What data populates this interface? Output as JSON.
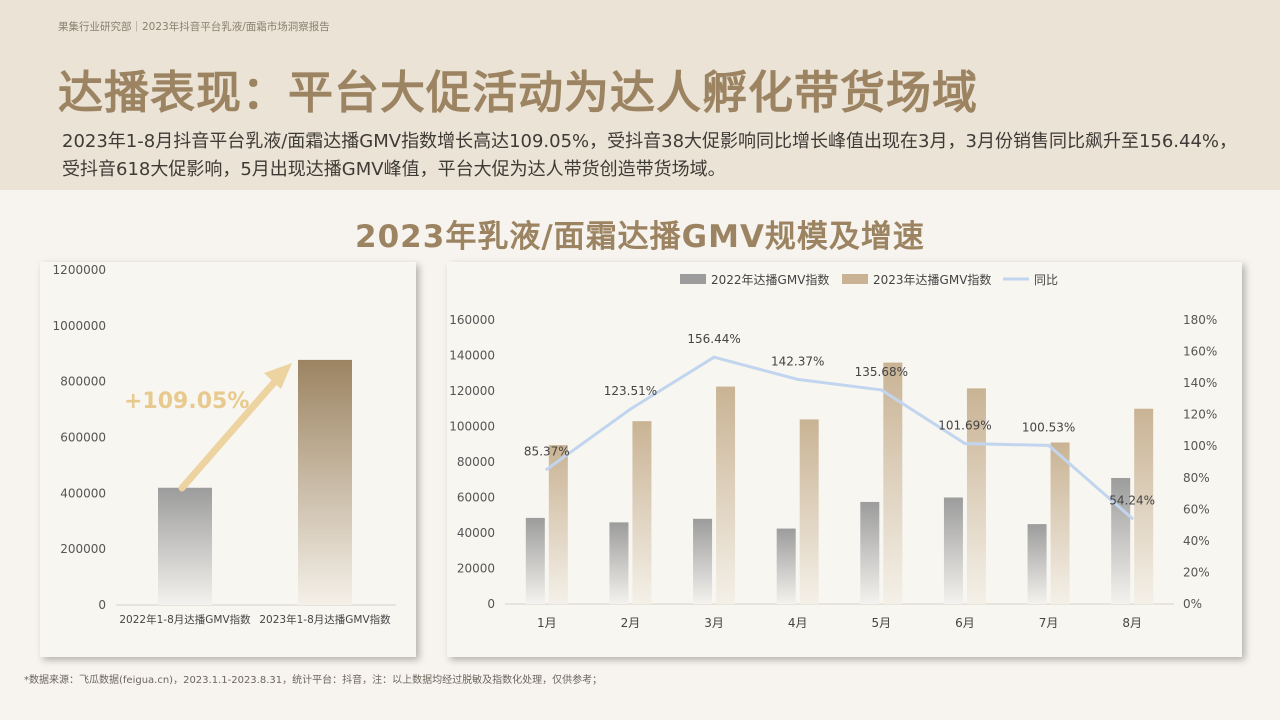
{
  "header": {
    "breadcrumb": "果集行业研究部｜2023年抖音平台乳液/面霜市场洞察报告",
    "title": "达播表现：平台大促活动为达人孵化带货场域",
    "summary": "2023年1-8月抖音平台乳液/面霜达播GMV指数增长高达109.05%，受抖音38大促影响同比增长峰值出现在3月，3月份销售同比飙升至156.44%，受抖音618大促影响，5月出现达播GMV峰值，平台大促为达人带货创造带货场域。"
  },
  "chart_heading": "2023年乳液/面霜达播GMV规模及增速",
  "footnote": "*数据来源：飞瓜数据(feigua.cn)，2023.1.1-2023.8.31，统计平台：抖音，注：以上数据均经过脱敏及指数化处理，仅供参考；",
  "chart_data": [
    {
      "type": "bar",
      "categories": [
        "2022年1-8月达播GMV指数",
        "2023年1-8月达播GMV指数"
      ],
      "values": [
        420000,
        878000
      ],
      "ylim": [
        0,
        1200000
      ],
      "yticks": [
        "0",
        "200000",
        "400000",
        "600000",
        "800000",
        "1000000",
        "1200000"
      ],
      "annotation": "+109.05%",
      "colors": {
        "bar_2022": "#9c9c9c",
        "bar_2023": "#9c8462",
        "arrow": "#ecd3a0",
        "annotation": "#e8c98e"
      }
    },
    {
      "type": "bar",
      "categories": [
        "1月",
        "2月",
        "3月",
        "4月",
        "5月",
        "6月",
        "7月",
        "8月"
      ],
      "series": [
        {
          "name": "2022年达播GMV指数",
          "values": [
            48500,
            46000,
            48000,
            42500,
            57500,
            60000,
            45000,
            71000
          ],
          "color": "#9c9c9c"
        },
        {
          "name": "2023年达播GMV指数",
          "values": [
            89500,
            103000,
            122500,
            104000,
            136000,
            121500,
            91000,
            110000
          ],
          "color": "#c9b394"
        },
        {
          "name": "同比",
          "type": "line",
          "values": [
            85.37,
            123.51,
            156.44,
            142.37,
            135.68,
            101.69,
            100.53,
            54.24
          ],
          "labels": [
            "85.37%",
            "123.51%",
            "156.44%",
            "142.37%",
            "135.68%",
            "101.69%",
            "100.53%",
            "54.24%"
          ],
          "color": "#c2d5ef"
        }
      ],
      "ylim": [
        0,
        160000
      ],
      "y2lim": [
        0,
        180
      ],
      "yticks": [
        "0",
        "20000",
        "40000",
        "60000",
        "80000",
        "100000",
        "120000",
        "140000",
        "160000"
      ],
      "y2ticks": [
        "0%",
        "20%",
        "40%",
        "60%",
        "80%",
        "100%",
        "120%",
        "140%",
        "160%",
        "180%"
      ],
      "legend": "top"
    }
  ]
}
